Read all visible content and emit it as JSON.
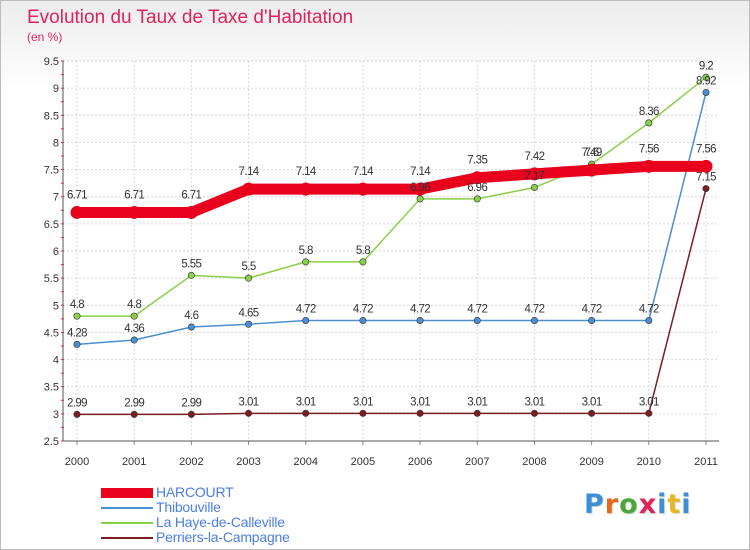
{
  "title": "Evolution du Taux de Taxe d'Habitation",
  "unit": "(en %)",
  "brand": {
    "text": "Proxiti",
    "colors": [
      "#3a8fd6",
      "#e46a1a",
      "#4aa83a",
      "#e0245a",
      "#3a8fd6",
      "#e8b824",
      "#3a8fd6"
    ]
  },
  "chart_data": {
    "type": "line",
    "x": [
      "2000",
      "2001",
      "2002",
      "2003",
      "2004",
      "2005",
      "2006",
      "2007",
      "2008",
      "2009",
      "2010",
      "2011"
    ],
    "ylim": [
      2.5,
      9.5
    ],
    "yticks": [
      "2.5",
      "3",
      "3.5",
      "4",
      "4.5",
      "5",
      "5.5",
      "6",
      "6.5",
      "7",
      "7.5",
      "8",
      "8.5",
      "9",
      "9.5"
    ],
    "grid": true,
    "legend_position": "bottom-left",
    "series": [
      {
        "name": "HARCOURT",
        "color": "#e8001c",
        "values": [
          6.71,
          6.71,
          6.71,
          7.14,
          7.14,
          7.14,
          7.14,
          7.35,
          7.42,
          7.49,
          7.56,
          7.56
        ],
        "labels": [
          "6.71",
          "6.71",
          "6.71",
          "7.14",
          "7.14",
          "7.14",
          "7.14",
          "7.35",
          "7.42",
          "7.49",
          "7.56",
          "7.56"
        ]
      },
      {
        "name": "Thibouville",
        "color": "#4a90d0",
        "values": [
          4.28,
          4.36,
          4.6,
          4.65,
          4.72,
          4.72,
          4.72,
          4.72,
          4.72,
          4.72,
          4.72,
          8.92
        ],
        "labels": [
          "4.28",
          "4.36",
          "4.6",
          "4.65",
          "4.72",
          "4.72",
          "4.72",
          "4.72",
          "4.72",
          "4.72",
          "4.72",
          "8.92"
        ]
      },
      {
        "name": "La Haye-de-Calleville",
        "color": "#88d048",
        "values": [
          4.8,
          4.8,
          5.55,
          5.5,
          5.8,
          5.8,
          6.96,
          6.96,
          7.17,
          7.6,
          8.36,
          9.2
        ],
        "labels": [
          "4.8",
          "4.8",
          "5.55",
          "5.5",
          "5.8",
          "5.8",
          "6.96",
          "6.96",
          "7.17",
          "7.6",
          "8.36",
          "9.2"
        ]
      },
      {
        "name": "Perriers-la-Campagne",
        "color": "#7a1e22",
        "values": [
          2.99,
          2.99,
          2.99,
          3.01,
          3.01,
          3.01,
          3.01,
          3.01,
          3.01,
          3.01,
          3.01,
          7.15
        ],
        "labels": [
          "2.99",
          "2.99",
          "2.99",
          "3.01",
          "3.01",
          "3.01",
          "3.01",
          "3.01",
          "3.01",
          "3.01",
          "3.01",
          "7.15"
        ]
      }
    ]
  }
}
